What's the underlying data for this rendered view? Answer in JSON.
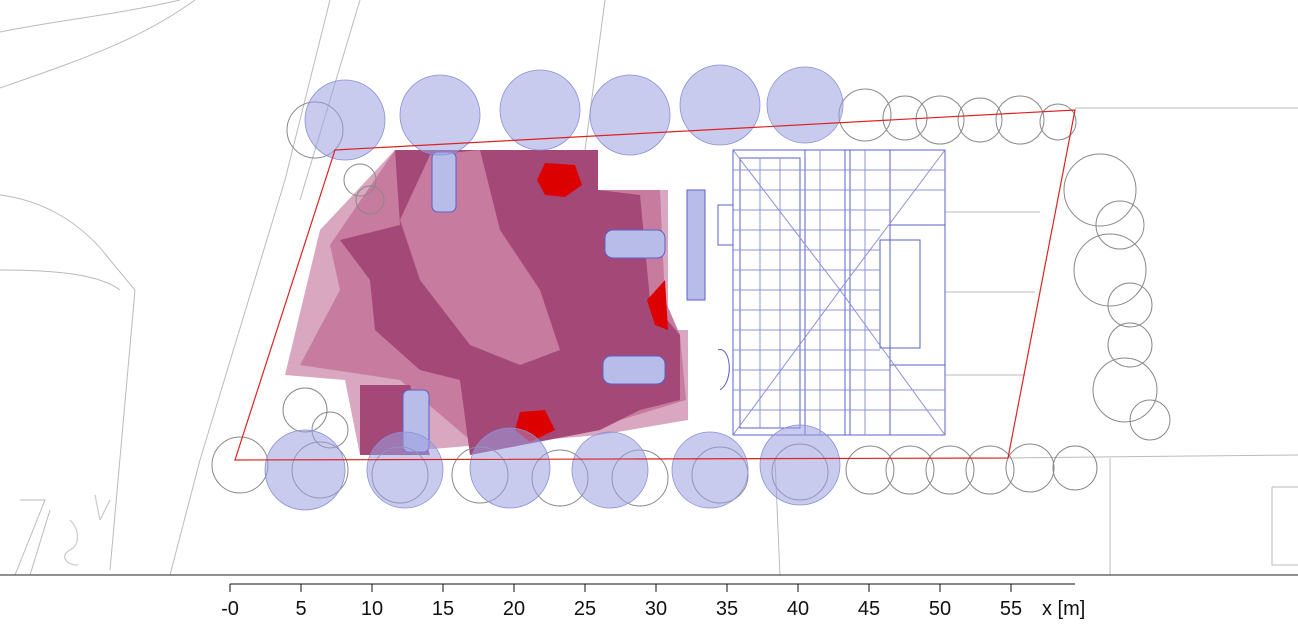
{
  "scale_bar": {
    "unit_label": "x [m]",
    "tick_labels": [
      "-0",
      "5",
      "10",
      "15",
      "20",
      "25",
      "30",
      "35",
      "40",
      "45",
      "50",
      "55"
    ],
    "tick_values": [
      0,
      5,
      10,
      15,
      20,
      25,
      30,
      35,
      40,
      45,
      50,
      55
    ]
  },
  "legend_colors": {
    "zone_light": "#d9a7bf",
    "zone_medium": "#c77b9e",
    "zone_dark": "#a44878",
    "zone_hot": "#dd0000",
    "tree_canopy": "#9a9fe0",
    "building_lines": "#5a60c8",
    "site_boundary": "#dd2222",
    "background_lines": "#bbbbbb"
  },
  "map": {
    "ground_text": ""
  }
}
